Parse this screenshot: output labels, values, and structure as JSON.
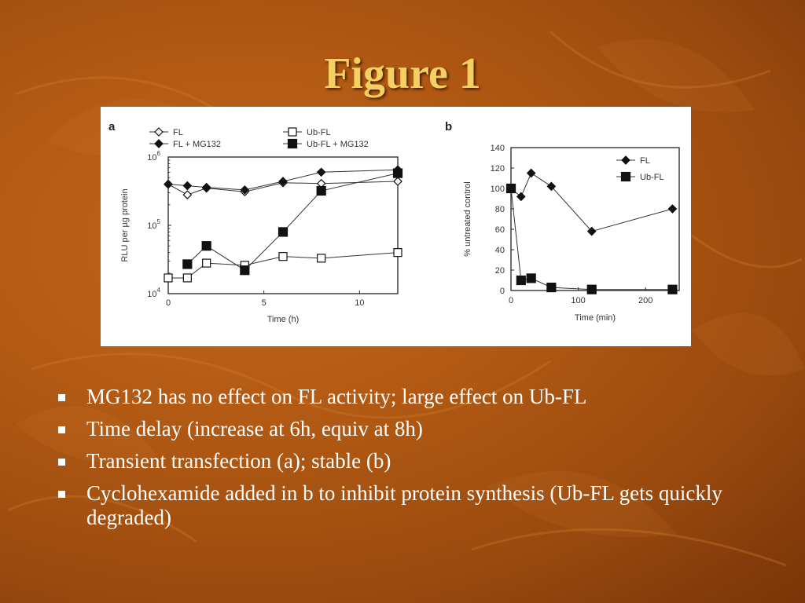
{
  "slide": {
    "title": "Figure 1"
  },
  "figure": {
    "panel_a": {
      "letter": "a",
      "legend": [
        {
          "label": "FL",
          "marker": "open-diamond"
        },
        {
          "label": "FL + MG132",
          "marker": "filled-diamond"
        },
        {
          "label": "Ub-FL",
          "marker": "open-square"
        },
        {
          "label": "Ub-FL + MG132",
          "marker": "filled-square"
        }
      ]
    },
    "panel_b": {
      "letter": "b",
      "legend": [
        {
          "label": "FL",
          "marker": "filled-diamond"
        },
        {
          "label": "Ub-FL",
          "marker": "filled-square"
        }
      ]
    }
  },
  "chart_data": [
    {
      "type": "line",
      "xlabel": "Time (h)",
      "ylabel": "RLU per µg protein",
      "xlim": [
        0,
        12
      ],
      "ylim": [
        10000,
        1000000
      ],
      "yscale": "log",
      "xticks": [
        0,
        5,
        10
      ],
      "yticks": [
        {
          "base": "10",
          "exp": "4",
          "value": 10000
        },
        {
          "base": "10",
          "exp": "5",
          "value": 100000
        },
        {
          "base": "10",
          "exp": "6",
          "value": 1000000
        }
      ],
      "series": [
        {
          "name": "FL",
          "marker": "open-diamond",
          "x": [
            0,
            1,
            2,
            4,
            6,
            8,
            12
          ],
          "y": [
            400000,
            280000,
            350000,
            310000,
            420000,
            410000,
            440000
          ]
        },
        {
          "name": "FL + MG132",
          "marker": "filled-diamond",
          "x": [
            0,
            1,
            2,
            4,
            6,
            8,
            12
          ],
          "y": [
            400000,
            380000,
            360000,
            330000,
            440000,
            600000,
            650000
          ]
        },
        {
          "name": "Ub-FL",
          "marker": "open-square",
          "x": [
            0,
            1,
            2,
            4,
            6,
            8,
            12
          ],
          "y": [
            17000,
            17000,
            28000,
            26000,
            35000,
            33000,
            40000
          ]
        },
        {
          "name": "Ub-FL + MG132",
          "marker": "filled-square",
          "x": [
            1,
            2,
            4,
            6,
            8,
            12
          ],
          "y": [
            27000,
            50000,
            22000,
            80000,
            320000,
            580000
          ]
        }
      ]
    },
    {
      "type": "line",
      "xlabel": "Time (min)",
      "ylabel": "% untreated control",
      "xlim": [
        0,
        250
      ],
      "ylim": [
        0,
        140
      ],
      "xticks": [
        0,
        100,
        200
      ],
      "yticks": [
        0,
        20,
        40,
        60,
        80,
        100,
        120,
        140
      ],
      "series": [
        {
          "name": "FL",
          "marker": "filled-diamond",
          "x": [
            0,
            15,
            30,
            60,
            120,
            240
          ],
          "y": [
            100,
            92,
            115,
            102,
            58,
            80
          ]
        },
        {
          "name": "Ub-FL",
          "marker": "filled-square",
          "x": [
            0,
            15,
            30,
            60,
            120,
            240
          ],
          "y": [
            100,
            10,
            12,
            3,
            1,
            1
          ]
        }
      ]
    }
  ],
  "bullets": [
    "MG132 has no effect on FL activity; large effect on Ub-FL",
    "Time delay (increase at 6h, equiv at 8h)",
    "Transient transfection (a); stable (b)",
    "Cyclohexamide added in b to inhibit protein synthesis (Ub-FL gets quickly degraded)"
  ]
}
